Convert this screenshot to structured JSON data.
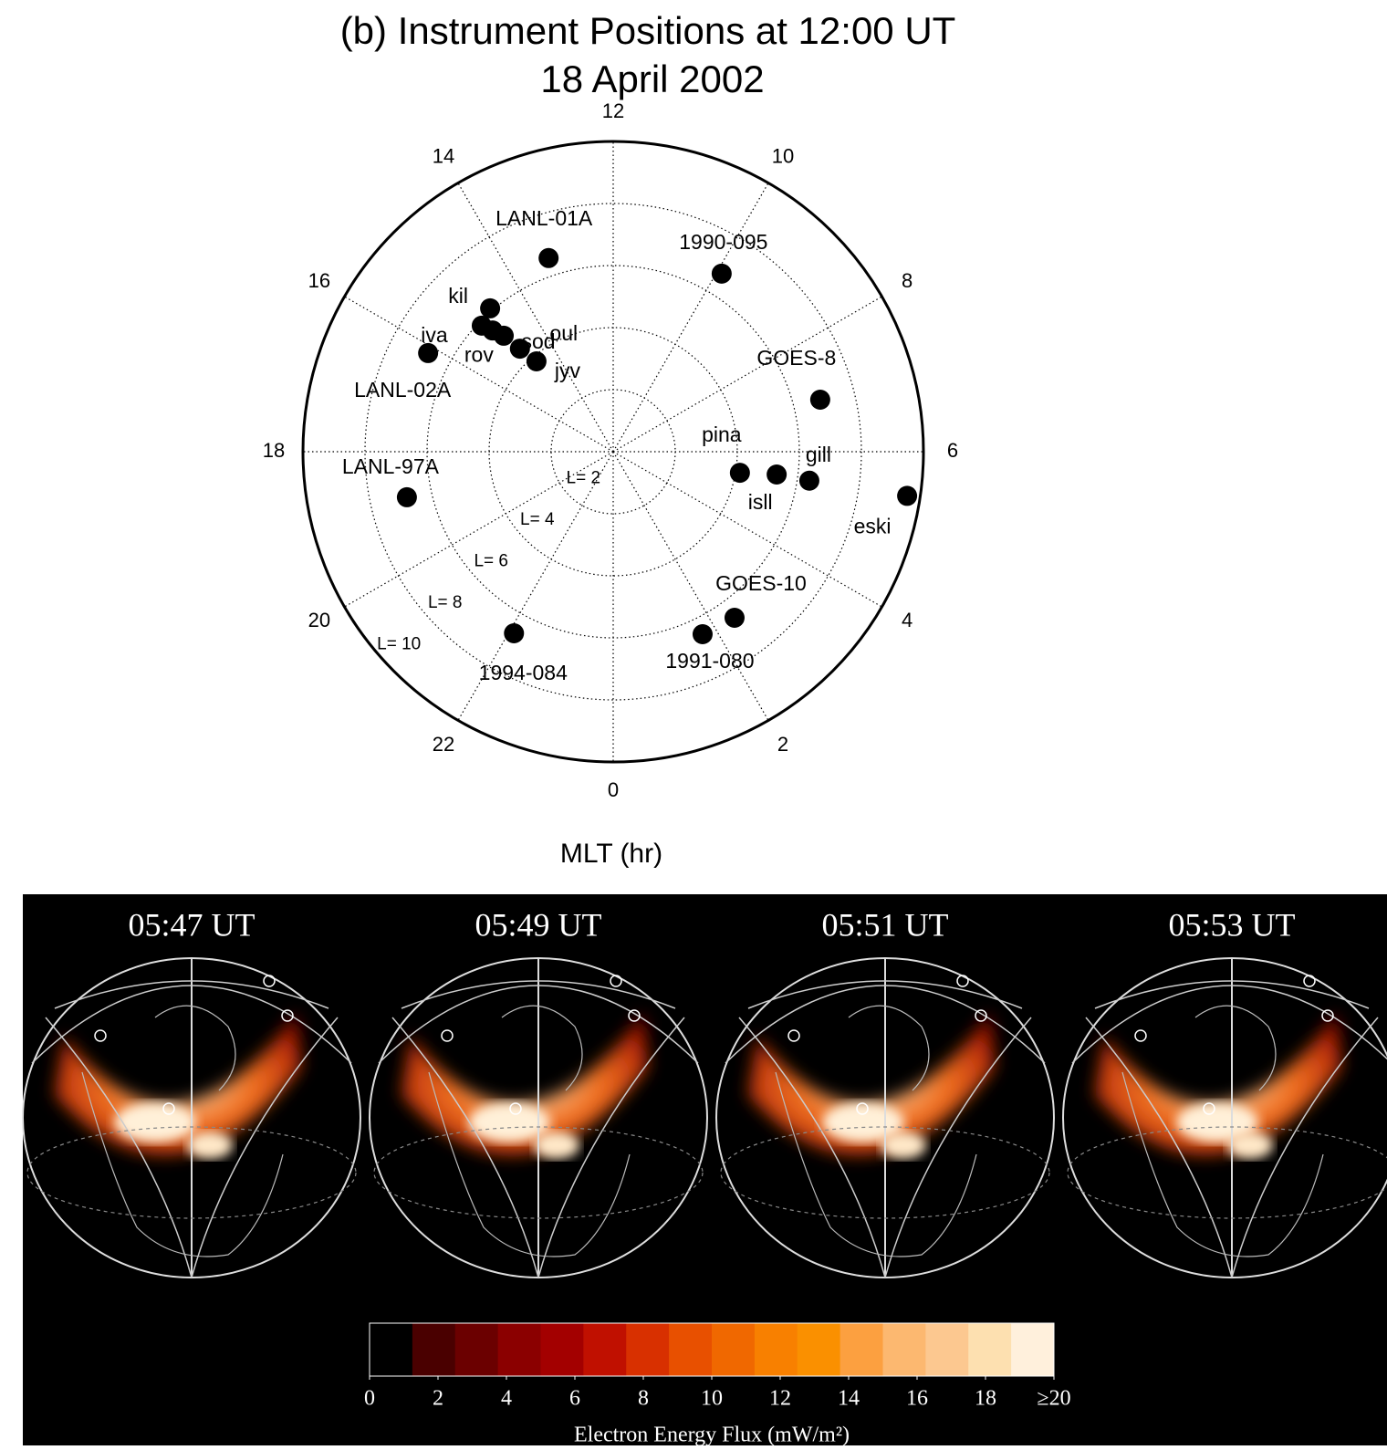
{
  "chart_data": [
    {
      "type": "polar",
      "title": [
        "(b) Instrument Positions at 12:00 UT",
        "18 April 2002"
      ],
      "xlabel": "MLT (hr)",
      "xlim": [
        0,
        24
      ],
      "xticks": [
        0,
        2,
        4,
        6,
        8,
        10,
        12,
        14,
        16,
        18,
        20,
        22
      ],
      "rlim": [
        0,
        10
      ],
      "rticks": [
        {
          "value": 2,
          "label": "L= 2"
        },
        {
          "value": 4,
          "label": "L= 4"
        },
        {
          "value": 6,
          "label": "L= 6"
        },
        {
          "value": 8,
          "label": "L= 8"
        },
        {
          "value": 10,
          "label": "L= 10"
        }
      ],
      "color": "#000000",
      "points": [
        {
          "name": "LANL-01A",
          "mlt": 13.23,
          "L": 6.58
        },
        {
          "name": "1990-095",
          "mlt": 9.91,
          "L": 6.72
        },
        {
          "name": "kil",
          "mlt": 14.71,
          "L": 6.09
        },
        {
          "name": "iva",
          "mlt": 15.08,
          "L": 5.87
        },
        {
          "name": "rov",
          "mlt": 14.99,
          "L": 5.51
        },
        {
          "name": "sod",
          "mlt": 14.89,
          "L": 5.14
        },
        {
          "name": "oul",
          "mlt": 14.81,
          "L": 4.48
        },
        {
          "name": "jyv",
          "mlt": 14.69,
          "L": 3.82
        },
        {
          "name": "LANL-02A",
          "mlt": 16.13,
          "L": 6.76
        },
        {
          "name": "GOES-8",
          "mlt": 6.94,
          "L": 6.88
        },
        {
          "name": "LANL-97A",
          "mlt": 18.83,
          "L": 6.81
        },
        {
          "name": "pina",
          "mlt": 5.37,
          "L": 4.14
        },
        {
          "name": "isll",
          "mlt": 5.47,
          "L": 5.32
        },
        {
          "name": "gill",
          "mlt": 5.44,
          "L": 6.39
        },
        {
          "name": "eski",
          "mlt": 5.43,
          "L": 9.58
        },
        {
          "name": "GOES-10",
          "mlt": 2.41,
          "L": 6.63
        },
        {
          "name": "1991-080",
          "mlt": 1.74,
          "L": 6.55
        },
        {
          "name": "1994-084",
          "mlt": 22.09,
          "L": 6.67
        }
      ]
    },
    {
      "type": "colorbar",
      "panels": [
        "05:47 UT",
        "05:49 UT",
        "05:51 UT",
        "05:53 UT"
      ],
      "xlabel": "Electron Energy Flux (mW/m²)",
      "xlim": [
        0,
        20
      ],
      "xticks": [
        0,
        2,
        4,
        6,
        8,
        10,
        12,
        14,
        16,
        18,
        {
          "value": 20,
          "label": "≥20"
        }
      ],
      "colors": [
        "#000000",
        "#4a0000",
        "#6b0000",
        "#8b0000",
        "#a30000",
        "#c01000",
        "#d83000",
        "#e85000",
        "#f06800",
        "#f88000",
        "#fa9000",
        "#fca040",
        "#fcb870",
        "#fcc890",
        "#fde0b0",
        "#fff0dc"
      ]
    }
  ]
}
